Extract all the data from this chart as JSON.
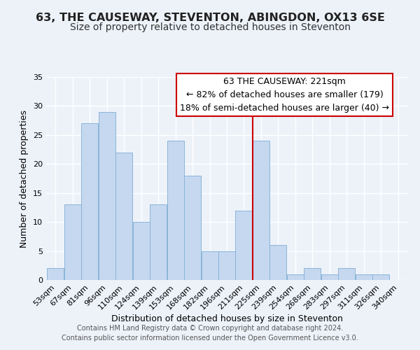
{
  "title": "63, THE CAUSEWAY, STEVENTON, ABINGDON, OX13 6SE",
  "subtitle": "Size of property relative to detached houses in Steventon",
  "xlabel": "Distribution of detached houses by size in Steventon",
  "ylabel": "Number of detached properties",
  "bar_labels": [
    "53sqm",
    "67sqm",
    "81sqm",
    "96sqm",
    "110sqm",
    "124sqm",
    "139sqm",
    "153sqm",
    "168sqm",
    "182sqm",
    "196sqm",
    "211sqm",
    "225sqm",
    "239sqm",
    "254sqm",
    "268sqm",
    "283sqm",
    "297sqm",
    "311sqm",
    "326sqm",
    "340sqm"
  ],
  "bar_values": [
    2,
    13,
    27,
    29,
    22,
    10,
    13,
    24,
    18,
    5,
    5,
    12,
    24,
    6,
    1,
    2,
    1,
    2,
    1,
    1,
    0
  ],
  "bar_color": "#c5d8f0",
  "bar_edge_color": "#8ab4d8",
  "reference_line_color": "#cc0000",
  "ylim": [
    0,
    35
  ],
  "yticks": [
    0,
    5,
    10,
    15,
    20,
    25,
    30,
    35
  ],
  "annotation_title": "63 THE CAUSEWAY: 221sqm",
  "annotation_line1": "← 82% of detached houses are smaller (179)",
  "annotation_line2": "18% of semi-detached houses are larger (40) →",
  "annotation_box_color": "#ffffff",
  "annotation_box_edge": "#cc0000",
  "footer1": "Contains HM Land Registry data © Crown copyright and database right 2024.",
  "footer2": "Contains public sector information licensed under the Open Government Licence v3.0.",
  "background_color": "#edf2f9",
  "grid_color": "#ffffff",
  "title_fontsize": 11.5,
  "subtitle_fontsize": 10,
  "axis_label_fontsize": 9,
  "tick_fontsize": 8,
  "annotation_fontsize": 9,
  "footer_fontsize": 7
}
